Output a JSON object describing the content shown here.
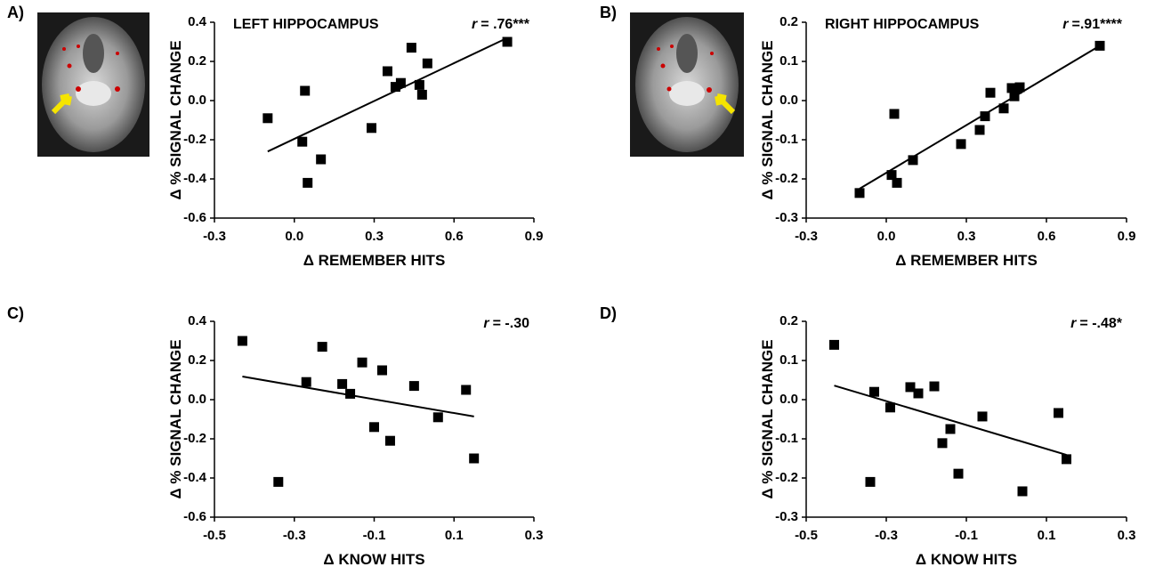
{
  "chart_data": [
    {
      "type": "scatter",
      "panel_label": "A)",
      "title": "LEFT HIPPOCAMPUS",
      "stat_symbol": "r",
      "stat_value": "= .76***",
      "xlabel": "Δ REMEMBER HITS",
      "ylabel": "Δ % SIGNAL CHANGE",
      "color": "#000000",
      "x": [
        -0.1,
        0.04,
        0.03,
        0.1,
        0.05,
        0.29,
        0.35,
        0.38,
        0.4,
        0.44,
        0.47,
        0.48,
        0.5,
        0.8
      ],
      "y": [
        -0.09,
        0.05,
        -0.21,
        -0.3,
        -0.42,
        -0.14,
        0.15,
        0.07,
        0.09,
        0.27,
        0.08,
        0.03,
        0.19,
        0.3
      ],
      "trendline": {
        "x": [
          -0.1,
          0.8
        ],
        "y": [
          -0.26,
          0.32
        ]
      },
      "xlim": [
        -0.3,
        0.9
      ],
      "ylim": [
        -0.6,
        0.4
      ],
      "xticks": [
        -0.3,
        {
          "value": 0,
          "label": "0.0"
        },
        0.3,
        0.6,
        0.9
      ],
      "yticks": [
        -0.6,
        -0.4,
        -0.2,
        {
          "value": 0,
          "label": "0.0"
        },
        0.2,
        0.4
      ]
    },
    {
      "type": "scatter",
      "panel_label": "B)",
      "title": "RIGHT HIPPOCAMPUS",
      "stat_symbol": "r",
      "stat_value": "=.91****",
      "xlabel": "Δ REMEMBER HITS",
      "ylabel": "Δ % SIGNAL CHANGE",
      "color": "#000000",
      "x": [
        -0.1,
        0.03,
        0.02,
        0.04,
        0.1,
        0.28,
        0.35,
        0.37,
        0.39,
        0.44,
        0.47,
        0.48,
        0.49,
        0.5,
        0.8
      ],
      "y": [
        -0.236,
        -0.034,
        -0.19,
        -0.21,
        -0.152,
        -0.111,
        -0.075,
        -0.04,
        0.02,
        -0.02,
        0.032,
        0.011,
        0.03,
        0.034,
        0.14
      ],
      "trendline": {
        "x": [
          -0.1,
          0.8
        ],
        "y": [
          -0.225,
          0.14
        ]
      },
      "xlim": [
        -0.3,
        0.9
      ],
      "ylim": [
        -0.3,
        0.2
      ],
      "xticks": [
        -0.3,
        {
          "value": 0,
          "label": "0.0"
        },
        0.3,
        0.6,
        0.9
      ],
      "yticks": [
        -0.3,
        -0.2,
        -0.1,
        {
          "value": 0,
          "label": "0.0"
        },
        0.1,
        0.2
      ]
    },
    {
      "type": "scatter",
      "panel_label": "C)",
      "stat_symbol": "r",
      "stat_value": "= -.30",
      "xlabel": "Δ KNOW HITS",
      "ylabel": "Δ % SIGNAL CHANGE",
      "color": "#000000",
      "x": [
        -0.43,
        -0.34,
        -0.27,
        -0.23,
        -0.18,
        -0.16,
        -0.13,
        -0.1,
        -0.08,
        -0.06,
        0.0,
        0.06,
        0.13,
        0.15
      ],
      "y": [
        0.3,
        -0.42,
        0.09,
        0.27,
        0.08,
        0.03,
        0.19,
        -0.14,
        0.15,
        -0.21,
        0.07,
        -0.09,
        0.05,
        -0.3
      ],
      "trendline": {
        "x": [
          -0.43,
          0.15
        ],
        "y": [
          0.118,
          -0.086
        ]
      },
      "xlim": [
        -0.5,
        0.3
      ],
      "ylim": [
        -0.6,
        0.4
      ],
      "xticks": [
        -0.5,
        -0.3,
        -0.1,
        0.1,
        0.3
      ],
      "yticks": [
        -0.6,
        -0.4,
        -0.2,
        {
          "value": 0,
          "label": "0.0"
        },
        0.2,
        0.4
      ]
    },
    {
      "type": "scatter",
      "panel_label": "D)",
      "stat_symbol": "r",
      "stat_value": "= -.48*",
      "xlabel": "Δ KNOW HITS",
      "ylabel": "Δ % SIGNAL CHANGE",
      "color": "#000000",
      "x": [
        -0.43,
        -0.34,
        -0.33,
        -0.29,
        -0.24,
        -0.22,
        -0.18,
        -0.16,
        -0.14,
        -0.12,
        -0.06,
        0.04,
        0.13,
        0.15
      ],
      "y": [
        0.14,
        -0.21,
        0.02,
        -0.02,
        0.032,
        0.016,
        0.034,
        -0.111,
        -0.075,
        -0.189,
        -0.043,
        -0.234,
        -0.034,
        -0.152
      ],
      "trendline": {
        "x": [
          -0.43,
          0.15
        ],
        "y": [
          0.036,
          -0.141
        ]
      },
      "xlim": [
        -0.5,
        0.3
      ],
      "ylim": [
        -0.3,
        0.2
      ],
      "xticks": [
        -0.5,
        -0.3,
        -0.1,
        0.1,
        0.3
      ],
      "yticks": [
        -0.3,
        -0.2,
        -0.1,
        {
          "value": 0,
          "label": "0.0"
        },
        0.1,
        0.2
      ]
    }
  ]
}
